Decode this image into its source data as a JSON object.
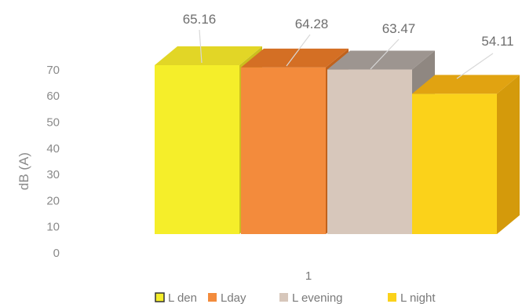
{
  "chart_data": {
    "type": "bar",
    "categories": [
      "1"
    ],
    "series": [
      {
        "name": "L den",
        "values": [
          65.16
        ],
        "color": "#f5ee2a",
        "top": "#e2d626",
        "side": "#cbbf1e"
      },
      {
        "name": "Lday",
        "values": [
          64.28
        ],
        "color": "#f38b3c",
        "top": "#d46f24",
        "side": "#c0621c"
      },
      {
        "name": "L evening",
        "values": [
          63.47
        ],
        "color": "#d7c7bb",
        "top": "#9d9590",
        "side": "#8f8781"
      },
      {
        "name": "L night",
        "values": [
          54.11
        ],
        "color": "#fbd21a",
        "top": "#e1a311",
        "side": "#d49a0b"
      }
    ],
    "ylabel": "dB (A)",
    "xlabel": "",
    "yticks": [
      0,
      10,
      20,
      30,
      40,
      50,
      60,
      70
    ],
    "ylim": [
      0,
      70
    ],
    "grid": false,
    "legend_position": "bottom",
    "data_labels": [
      "65.16",
      "64.28",
      "63.47",
      "54.11"
    ]
  }
}
